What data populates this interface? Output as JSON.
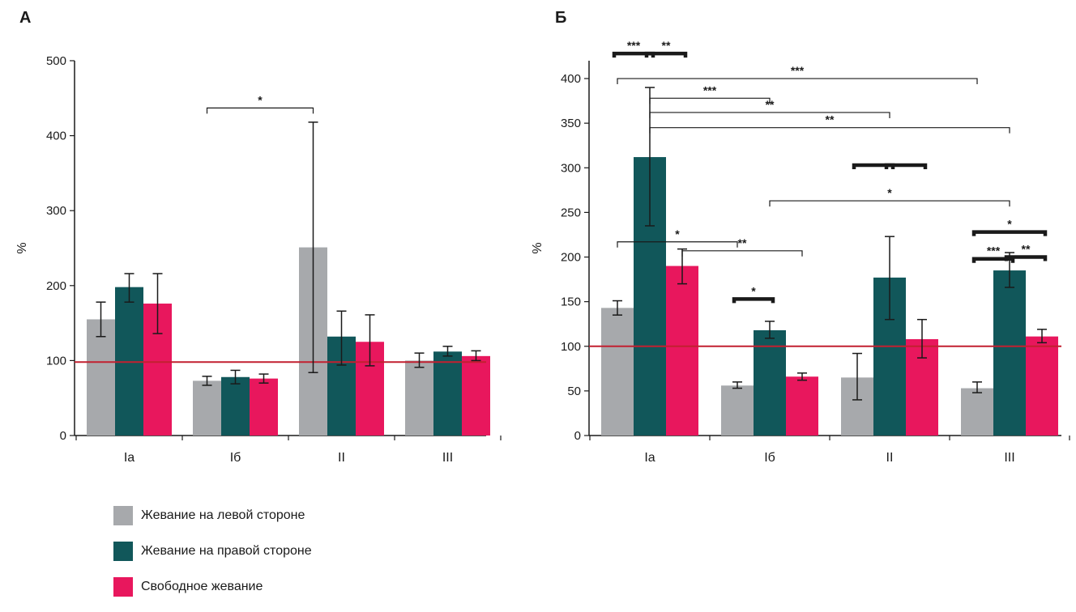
{
  "colors": {
    "left": "#a7a9ac",
    "right": "#11575a",
    "free": "#e8175d",
    "reference": "#c22030",
    "axis": "#1a1a1a"
  },
  "legend": [
    {
      "key": "left",
      "label": "Жевание на левой стороне"
    },
    {
      "key": "right",
      "label": "Жевание на правой стороне"
    },
    {
      "key": "free",
      "label": "Свободное жевание"
    }
  ],
  "chart_data": [
    {
      "panel_label": "А",
      "type": "bar",
      "ylabel": "%",
      "ylim": [
        0,
        500
      ],
      "yticks": [
        0,
        100,
        200,
        300,
        400,
        500
      ],
      "reference_line": 98,
      "categories": [
        "Ia",
        "Iб",
        "II",
        "III"
      ],
      "series": [
        {
          "name": "Жевание на левой стороне",
          "key": "left",
          "values": [
            155,
            73,
            251,
            100
          ],
          "err_low": [
            132,
            67,
            84,
            91
          ],
          "err_high": [
            178,
            79,
            418,
            110
          ]
        },
        {
          "name": "Жевание на правой стороне",
          "key": "right",
          "values": [
            198,
            78,
            132,
            112
          ],
          "err_low": [
            178,
            69,
            94,
            106
          ],
          "err_high": [
            216,
            87,
            166,
            119
          ]
        },
        {
          "name": "Свободное жевание",
          "key": "free",
          "values": [
            176,
            76,
            125,
            106
          ],
          "err_low": [
            136,
            70,
            93,
            100
          ],
          "err_high": [
            216,
            82,
            161,
            113
          ]
        }
      ],
      "annotations": [
        {
          "label": "*",
          "from": [
            1,
            0
          ],
          "to": [
            2,
            0
          ],
          "y": 437,
          "style": "thin"
        }
      ]
    },
    {
      "panel_label": "Б",
      "type": "bar",
      "ylabel": "%",
      "ylim": [
        0,
        420
      ],
      "yticks": [
        0,
        50,
        100,
        150,
        200,
        250,
        300,
        350,
        400
      ],
      "reference_line": 100,
      "categories": [
        "Ia",
        "Iб",
        "II",
        "III"
      ],
      "series": [
        {
          "name": "Жевание на левой стороне",
          "key": "left",
          "values": [
            143,
            56,
            65,
            53
          ],
          "err_low": [
            135,
            53,
            40,
            48
          ],
          "err_high": [
            151,
            60,
            92,
            60
          ]
        },
        {
          "name": "Жевание на правой стороне",
          "key": "right",
          "values": [
            312,
            118,
            177,
            185
          ],
          "err_low": [
            235,
            109,
            130,
            166
          ],
          "err_high": [
            390,
            128,
            223,
            205
          ]
        },
        {
          "name": "Свободное жевание",
          "key": "free",
          "values": [
            190,
            66,
            108,
            111
          ],
          "err_low": [
            170,
            62,
            87,
            104
          ],
          "err_high": [
            209,
            70,
            130,
            119
          ]
        }
      ],
      "annotations": [
        {
          "label": "***",
          "from": [
            0,
            0
          ],
          "to": [
            0,
            1
          ],
          "y": 428,
          "style": "thick"
        },
        {
          "label": "**",
          "from": [
            0,
            1
          ],
          "to": [
            0,
            2
          ],
          "y": 428,
          "style": "thick"
        },
        {
          "label": "***",
          "from": [
            0,
            0
          ],
          "to": [
            3,
            0
          ],
          "y": 400,
          "style": "thin"
        },
        {
          "label": "***",
          "from": [
            0,
            1
          ],
          "to": [
            1,
            1
          ],
          "y": 378,
          "style": "thin"
        },
        {
          "label": "**",
          "from": [
            0,
            1
          ],
          "to": [
            2,
            1
          ],
          "y": 362,
          "style": "thin"
        },
        {
          "label": "**",
          "from": [
            0,
            1
          ],
          "to": [
            3,
            1
          ],
          "y": 345,
          "style": "thin"
        },
        {
          "label": "",
          "from": [
            2,
            0
          ],
          "to": [
            2,
            1
          ],
          "y": 303,
          "style": "thick"
        },
        {
          "label": "",
          "from": [
            2,
            1
          ],
          "to": [
            2,
            2
          ],
          "y": 303,
          "style": "thick"
        },
        {
          "label": "*",
          "from": [
            1,
            1
          ],
          "to": [
            3,
            1
          ],
          "y": 263,
          "style": "thin"
        },
        {
          "label": "*",
          "from": [
            3,
            0
          ],
          "to": [
            3,
            2
          ],
          "y": 228,
          "style": "thick"
        },
        {
          "label": "*",
          "from": [
            0,
            0
          ],
          "to": [
            1,
            0
          ],
          "y": 217,
          "style": "thin"
        },
        {
          "label": "**",
          "from": [
            0,
            2
          ],
          "to": [
            1,
            2
          ],
          "y": 207,
          "style": "thin"
        },
        {
          "label": "***",
          "from": [
            3,
            0
          ],
          "to": [
            3,
            1
          ],
          "y": 198,
          "style": "thick"
        },
        {
          "label": "**",
          "from": [
            3,
            1
          ],
          "to": [
            3,
            2
          ],
          "y": 200,
          "style": "thick"
        },
        {
          "label": "*",
          "from": [
            1,
            0
          ],
          "to": [
            1,
            1
          ],
          "y": 153,
          "style": "thick"
        }
      ]
    }
  ]
}
